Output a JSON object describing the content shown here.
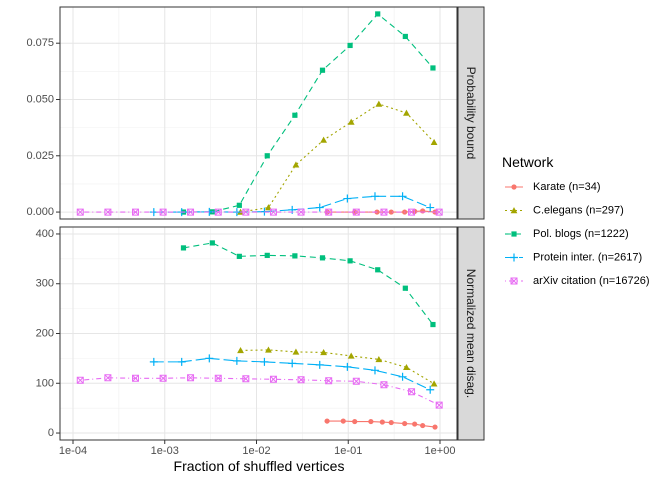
{
  "chart_data": {
    "type": "line",
    "x_scale": "log10",
    "xlabel": "Fraction of shuffled vertices",
    "x_ticks": [
      {
        "value": 0.0001,
        "label": "1e-04"
      },
      {
        "value": 0.001,
        "label": "1e-03"
      },
      {
        "value": 0.01,
        "label": "1e-02"
      },
      {
        "value": 0.1,
        "label": "1e-01"
      },
      {
        "value": 1,
        "label": "1e+00"
      }
    ],
    "xlim": [
      0.0001,
      1
    ],
    "legend": {
      "title": "Network",
      "position": "right"
    },
    "colors": {
      "Karate (n=34)": "#F8766D",
      "C.elegans (n=297)": "#A3A500",
      "Pol. blogs (n=1222)": "#00BF7D",
      "Protein inter. (n=2617)": "#00B0F6",
      "arXiv citation (n=16726)": "#E76BF3"
    },
    "panels": [
      {
        "strip_label": "Probability bound",
        "ylim": [
          0,
          0.088
        ],
        "y_ticks": [
          {
            "value": 0,
            "label": "0.000"
          },
          {
            "value": 0.025,
            "label": "0.025"
          },
          {
            "value": 0.05,
            "label": "0.050"
          },
          {
            "value": 0.075,
            "label": "0.075"
          }
        ],
        "series": [
          {
            "name": "Karate (n=34)",
            "marker": "circle",
            "dash": "solid",
            "x": [
              0.0588,
              0.1176,
              0.2059,
              0.2941,
              0.4118,
              0.5294,
              0.6471,
              0.8824
            ],
            "y": [
              0,
              0,
              0,
              0,
              0,
              0.0003,
              0.0005,
              0
            ]
          },
          {
            "name": "C.elegans (n=297)",
            "marker": "triangle",
            "dash": "dotted",
            "x": [
              0.0067,
              0.0135,
              0.0269,
              0.0539,
              0.1077,
              0.2155,
              0.431,
              0.862
            ],
            "y": [
              0,
              0.002,
              0.021,
              0.032,
              0.04,
              0.048,
              0.044,
              0.031
            ]
          },
          {
            "name": "Pol. blogs (n=1222)",
            "marker": "square",
            "dash": "dashed",
            "x": [
              0.0016,
              0.0033,
              0.0065,
              0.0131,
              0.0262,
              0.0524,
              0.1047,
              0.2095,
              0.419,
              0.838
            ],
            "y": [
              0,
              0.0001,
              0.003,
              0.025,
              0.043,
              0.063,
              0.074,
              0.088,
              0.078,
              0.064
            ]
          },
          {
            "name": "Protein inter. (n=2617)",
            "marker": "plus",
            "dash": "longdash",
            "x": [
              0.00076,
              0.00153,
              0.00306,
              0.00611,
              0.0122,
              0.0245,
              0.0489,
              0.0978,
              0.1956,
              0.391,
              0.782
            ],
            "y": [
              0,
              0,
              0.0001,
              0,
              0.0002,
              0.001,
              0.002,
              0.006,
              0.007,
              0.007,
              0.002
            ]
          },
          {
            "name": "arXiv citation (n=16726)",
            "marker": "square-x",
            "dash": "dotdash",
            "x": [
              0.00012,
              0.00024,
              0.00048,
              0.00096,
              0.00191,
              0.00383,
              0.00765,
              0.0153,
              0.0306,
              0.0612,
              0.1224,
              0.2449,
              0.4898,
              0.9796
            ],
            "y": [
              0,
              0,
              0,
              0,
              0,
              0,
              0,
              0,
              0,
              0,
              0,
              0,
              0,
              0
            ]
          }
        ]
      },
      {
        "strip_label": "Normalized mean disag.",
        "ylim": [
          0,
          400
        ],
        "y_ticks": [
          {
            "value": 0,
            "label": "0"
          },
          {
            "value": 100,
            "label": "100"
          },
          {
            "value": 200,
            "label": "200"
          },
          {
            "value": 300,
            "label": "300"
          },
          {
            "value": 400,
            "label": "400"
          }
        ],
        "series": [
          {
            "name": "Karate (n=34)",
            "marker": "circle",
            "dash": "solid",
            "x": [
              0.0588,
              0.0882,
              0.1176,
              0.1765,
              0.2353,
              0.2941,
              0.4118,
              0.5294,
              0.6471,
              0.8824
            ],
            "y": [
              24,
              24,
              23,
              23,
              22,
              21,
              19,
              18,
              15,
              12
            ]
          },
          {
            "name": "C.elegans (n=297)",
            "marker": "triangle",
            "dash": "dotted",
            "x": [
              0.0067,
              0.0135,
              0.0269,
              0.0539,
              0.1077,
              0.2155,
              0.431,
              0.862
            ],
            "y": [
              166,
              167,
              163,
              162,
              155,
              148,
              132,
              99
            ]
          },
          {
            "name": "Pol. blogs (n=1222)",
            "marker": "square",
            "dash": "dashed",
            "x": [
              0.0016,
              0.0033,
              0.0065,
              0.0131,
              0.0262,
              0.0524,
              0.1047,
              0.2095,
              0.419,
              0.838
            ],
            "y": [
              372,
              382,
              355,
              357,
              356,
              352,
              346,
              328,
              291,
              218
            ]
          },
          {
            "name": "Protein inter. (n=2617)",
            "marker": "plus",
            "dash": "longdash",
            "x": [
              0.00076,
              0.00153,
              0.00306,
              0.00611,
              0.0122,
              0.0245,
              0.0489,
              0.0978,
              0.1956,
              0.391,
              0.782
            ],
            "y": [
              143,
              143,
              150,
              145,
              143,
              140,
              137,
              133,
              126,
              113,
              87
            ]
          },
          {
            "name": "arXiv citation (n=16726)",
            "marker": "square-x",
            "dash": "dotdash",
            "x": [
              0.00012,
              0.00024,
              0.00048,
              0.00096,
              0.00191,
              0.00383,
              0.00765,
              0.0153,
              0.0306,
              0.0612,
              0.1224,
              0.2449,
              0.4898,
              0.9796
            ],
            "y": [
              106,
              111,
              110,
              110,
              111,
              110,
              109,
              108,
              107,
              105,
              104,
              97,
              83,
              56
            ]
          }
        ]
      }
    ]
  }
}
